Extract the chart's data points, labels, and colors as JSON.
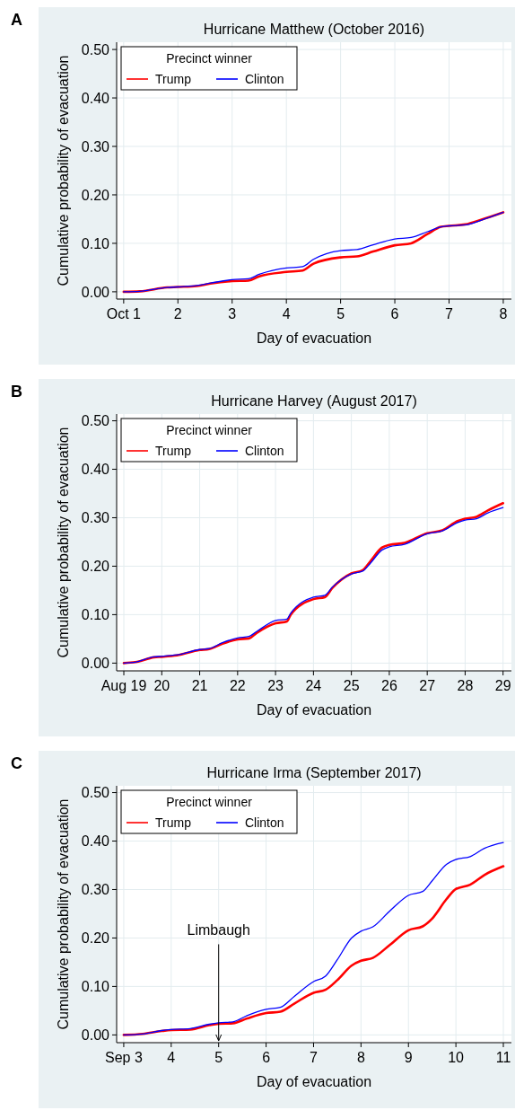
{
  "chart_data": [
    {
      "type": "line",
      "title": "Hurricane Matthew (October 2016)",
      "xlabel": "Day of evacuation",
      "ylabel": "Cumulative probability of evacuation",
      "legend_title": "Precinct winner",
      "legend": "top left",
      "grid": true,
      "annotations": [
        "A"
      ],
      "x": [
        1,
        1.3,
        1.8,
        2,
        2.35,
        2.6,
        3,
        3.3,
        3.5,
        4,
        4.3,
        4.5,
        5,
        5.3,
        5.6,
        6,
        6.3,
        6.6,
        6.85,
        7,
        7.3,
        7.6,
        8
      ],
      "series": [
        {
          "name": "Trump",
          "color": "#ff0000",
          "values": [
            0,
            0.001,
            0.009,
            0.01,
            0.012,
            0.017,
            0.022,
            0.023,
            0.032,
            0.041,
            0.044,
            0.058,
            0.071,
            0.073,
            0.083,
            0.096,
            0.1,
            0.119,
            0.134,
            0.136,
            0.139,
            0.149,
            0.164
          ]
        },
        {
          "name": "Clinton",
          "color": "#0000ff",
          "values": [
            0,
            0.001,
            0.009,
            0.01,
            0.013,
            0.018,
            0.025,
            0.027,
            0.036,
            0.049,
            0.052,
            0.067,
            0.085,
            0.087,
            0.097,
            0.109,
            0.112,
            0.124,
            0.134,
            0.136,
            0.138,
            0.148,
            0.164
          ]
        }
      ],
      "xlim": [
        0.87,
        8.15
      ],
      "xticks": [
        {
          "value": 1,
          "label": "Oct 1"
        },
        2,
        3,
        4,
        5,
        6,
        7,
        8
      ],
      "ylim": [
        -0.015,
        0.515
      ],
      "yticks": [
        {
          "value": 0,
          "label": "0.00"
        },
        {
          "value": 0.1,
          "label": "0.10"
        },
        {
          "value": 0.2,
          "label": "0.20"
        },
        {
          "value": 0.3,
          "label": "0.30"
        },
        {
          "value": 0.4,
          "label": "0.40"
        },
        {
          "value": 0.5,
          "label": "0.50"
        }
      ]
    },
    {
      "type": "line",
      "title": "Hurricane Harvey (August 2017)",
      "xlabel": "Day of evacuation",
      "ylabel": "Cumulative probability of evacuation",
      "legend_title": "Precinct winner",
      "legend": "top left",
      "grid": true,
      "annotations": [
        "B"
      ],
      "x": [
        19,
        19.3,
        19.8,
        20,
        20.4,
        21,
        21.25,
        21.6,
        22,
        22.3,
        22.5,
        23,
        23.3,
        23.4,
        24,
        24.3,
        24.5,
        25,
        25.3,
        25.5,
        25.8,
        26,
        26.4,
        27,
        27.4,
        27.8,
        28,
        28.3,
        28.6,
        29
      ],
      "series": [
        {
          "name": "Trump",
          "color": "#ff0000",
          "values": [
            0,
            0.002,
            0.012,
            0.013,
            0.016,
            0.027,
            0.029,
            0.04,
            0.049,
            0.051,
            0.062,
            0.082,
            0.086,
            0.1,
            0.132,
            0.136,
            0.155,
            0.185,
            0.192,
            0.21,
            0.238,
            0.244,
            0.248,
            0.268,
            0.274,
            0.293,
            0.298,
            0.302,
            0.315,
            0.33
          ]
        },
        {
          "name": "Clinton",
          "color": "#0000ff",
          "values": [
            0,
            0.002,
            0.013,
            0.014,
            0.017,
            0.028,
            0.03,
            0.042,
            0.052,
            0.055,
            0.065,
            0.088,
            0.091,
            0.103,
            0.136,
            0.14,
            0.157,
            0.184,
            0.19,
            0.206,
            0.233,
            0.24,
            0.245,
            0.267,
            0.273,
            0.29,
            0.295,
            0.298,
            0.31,
            0.321
          ]
        }
      ],
      "xlim": [
        18.81,
        29.22
      ],
      "xticks": [
        {
          "value": 19,
          "label": "Aug 19"
        },
        20,
        21,
        22,
        23,
        24,
        25,
        26,
        27,
        28,
        29
      ],
      "ylim": [
        -0.016,
        0.514
      ],
      "yticks": [
        {
          "value": 0,
          "label": "0.00"
        },
        {
          "value": 0.1,
          "label": "0.10"
        },
        {
          "value": 0.2,
          "label": "0.20"
        },
        {
          "value": 0.3,
          "label": "0.30"
        },
        {
          "value": 0.4,
          "label": "0.40"
        },
        {
          "value": 0.5,
          "label": "0.50"
        }
      ]
    },
    {
      "type": "line",
      "title": "Hurricane Irma (September 2017)",
      "xlabel": "Day of evacuation",
      "ylabel": "Cumulative probability of evacuation",
      "legend_title": "Precinct winner",
      "legend": "top left",
      "grid": true,
      "annotations": [
        "C",
        "Limbaugh"
      ],
      "x": [
        3,
        3.4,
        3.8,
        4,
        4.4,
        4.8,
        5,
        5.3,
        5.6,
        6,
        6.3,
        6.6,
        7,
        7.25,
        7.5,
        7.8,
        8,
        8.25,
        8.6,
        9,
        9.3,
        9.5,
        9.8,
        10,
        10.3,
        10.6,
        11
      ],
      "series": [
        {
          "name": "Trump",
          "color": "#ff0000",
          "values": [
            0,
            0.002,
            0.008,
            0.01,
            0.011,
            0.02,
            0.023,
            0.024,
            0.034,
            0.045,
            0.048,
            0.065,
            0.087,
            0.093,
            0.113,
            0.143,
            0.153,
            0.159,
            0.185,
            0.216,
            0.224,
            0.24,
            0.28,
            0.301,
            0.31,
            0.33,
            0.348
          ]
        },
        {
          "name": "Clinton",
          "color": "#0000ff",
          "values": [
            0,
            0.002,
            0.009,
            0.011,
            0.013,
            0.022,
            0.025,
            0.027,
            0.04,
            0.053,
            0.057,
            0.08,
            0.11,
            0.121,
            0.155,
            0.2,
            0.214,
            0.223,
            0.255,
            0.288,
            0.296,
            0.318,
            0.352,
            0.362,
            0.368,
            0.385,
            0.397
          ]
        }
      ],
      "xlim": [
        2.85,
        11.17
      ],
      "xticks": [
        {
          "value": 3,
          "label": "Sep 3"
        },
        4,
        5,
        6,
        7,
        8,
        9,
        10,
        11
      ],
      "ylim": [
        -0.016,
        0.514
      ],
      "yticks": [
        {
          "value": 0,
          "label": "0.00"
        },
        {
          "value": 0.1,
          "label": "0.10"
        },
        {
          "value": 0.2,
          "label": "0.20"
        },
        {
          "value": 0.3,
          "label": "0.30"
        },
        {
          "value": 0.4,
          "label": "0.40"
        },
        {
          "value": 0.5,
          "label": "0.50"
        }
      ]
    }
  ]
}
